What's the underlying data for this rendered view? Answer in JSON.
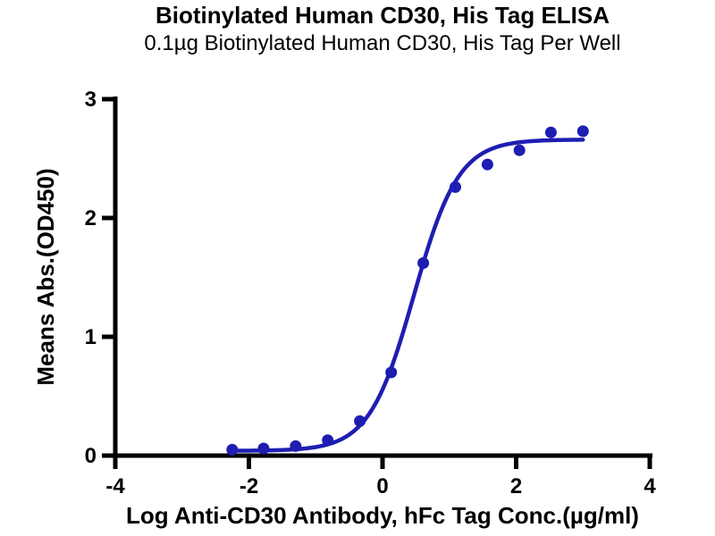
{
  "chart_data": {
    "type": "scatter",
    "title": "Biotinylated Human CD30, His Tag ELISA",
    "subtitle": "0.1µg Biotinylated Human CD30, His Tag Per Well",
    "xlabel": "Log Anti-CD30 Antibody, hFc Tag Conc.(µg/ml)",
    "ylabel": "Means Abs.(OD450)",
    "xlim": [
      -4,
      4
    ],
    "ylim": [
      0,
      3
    ],
    "x_ticks": [
      -4,
      -2,
      0,
      2,
      4
    ],
    "y_ticks": [
      0,
      1,
      2,
      3
    ],
    "grid": false,
    "legend": null,
    "points": {
      "x": [
        -2.25,
        -1.78,
        -1.3,
        -0.82,
        -0.34,
        0.13,
        0.61,
        1.09,
        1.57,
        2.05,
        2.52,
        3.0
      ],
      "y": [
        0.05,
        0.06,
        0.08,
        0.13,
        0.29,
        0.7,
        1.62,
        2.26,
        2.45,
        2.57,
        2.72,
        2.73
      ]
    },
    "fit_curve": {
      "model": "4PL",
      "bottom": 0.04,
      "top": 2.66,
      "log_ec50": 0.47,
      "hill": 1.3,
      "x_start": -2.25,
      "x_end": 3.0
    },
    "colors": {
      "series": "#1e1eb2",
      "axis": "#000000",
      "background": "#ffffff"
    }
  }
}
